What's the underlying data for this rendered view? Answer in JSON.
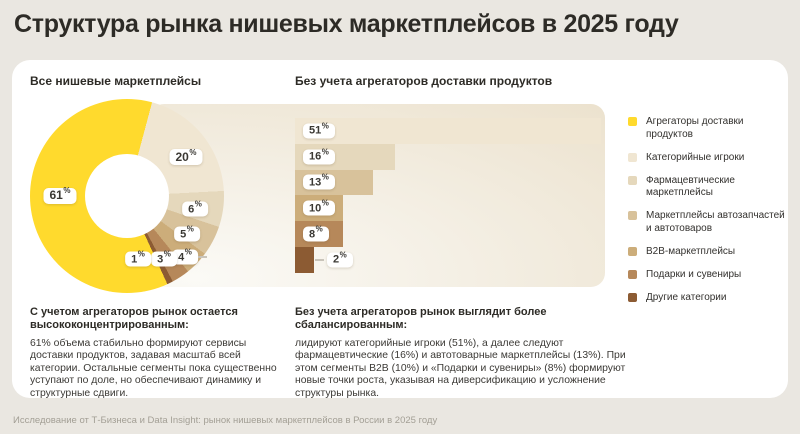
{
  "page": {
    "title": "Структура рынка нишевых маркетплейсов в 2025 году",
    "footer": "Исследование от Т-Бизнеса и Data Insight: рынок нишевых маркетплейсов в России в 2025 году",
    "background": "#EAE7E1",
    "card_background": "#FFFFFF",
    "accent_yellow": "#FFDA2D"
  },
  "chart_data": [
    {
      "type": "pie",
      "variant": "donut",
      "title": "Все нишевые маркетплейсы",
      "unit": "%",
      "segments": [
        {
          "label": "Агрегаторы доставки продуктов",
          "value": 61,
          "color": "#FFDA2D"
        },
        {
          "label": "Категорийные игроки",
          "value": 20,
          "color": "#F0E6D2"
        },
        {
          "label": "Фармацевтические маркетплейсы",
          "value": 6,
          "color": "#E5D8BC"
        },
        {
          "label": "Маркетплейсы автозапчастей и автотоваров",
          "value": 5,
          "color": "#D8C29B"
        },
        {
          "label": "B2B-маркетплейсы",
          "value": 4,
          "color": "#CCAD7A"
        },
        {
          "label": "Подарки и сувениры",
          "value": 3,
          "color": "#B6885A"
        },
        {
          "label": "Другие категории",
          "value": 1,
          "color": "#8C5B33"
        }
      ]
    },
    {
      "type": "bar",
      "orientation": "horizontal",
      "title": "Без учета агрегаторов доставки продуктов",
      "unit": "%",
      "categories": [
        "Категорийные игроки",
        "Фармацевтические маркетплейсы",
        "Маркетплейсы автозапчастей и автотоваров",
        "B2B-маркетплейсы",
        "Подарки и сувениры",
        "Другие категории"
      ],
      "values": [
        51,
        16,
        13,
        10,
        8,
        2
      ],
      "colors": [
        "#F0E6D2",
        "#E5D8BC",
        "#D8C29B",
        "#CCAD7A",
        "#B6885A",
        "#8C5B33"
      ],
      "xlim": [
        0,
        51
      ],
      "value_labels": true,
      "grid": false,
      "legend_position": "right"
    }
  ],
  "notes": {
    "left": {
      "heading": "С учетом агрегаторов рынок остается высококонцентрированным:",
      "body": "61% объема стабильно формируют сервисы доставки продуктов, задавая масштаб всей категории. Остальные сегменты пока существенно уступают по доле, но обеспечивают динамику и структурные сдвиги."
    },
    "right": {
      "heading": "Без учета агрегаторов рынок выглядит более сбалансированным:",
      "body": "лидируют категорийные игроки (51%), а далее следуют фармацевтические (16%) и автотоварные маркетплейсы (13%). При этом сегменты B2B (10%) и «Подарки и сувениры» (8%) формируют новые точки роста, указывая на диверсификацию и усложнение структуры рынка."
    }
  }
}
